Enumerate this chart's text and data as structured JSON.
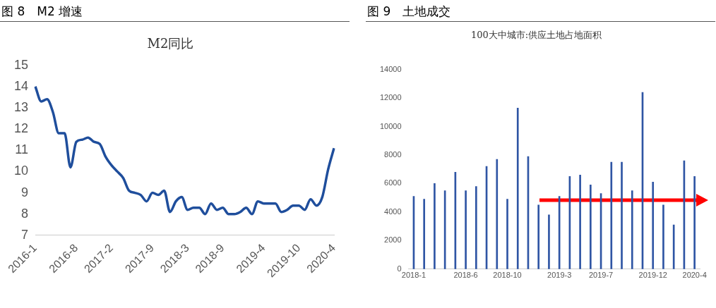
{
  "chart_data": [
    {
      "type": "line",
      "title": "图 8　M2 增速",
      "subtitle": "M2同比",
      "categories": [
        "2016-1",
        null,
        null,
        null,
        null,
        null,
        null,
        "2016-8",
        null,
        null,
        null,
        null,
        null,
        "2017-2",
        null,
        null,
        null,
        null,
        null,
        null,
        "2017-9",
        null,
        null,
        null,
        null,
        null,
        "2018-3",
        null,
        null,
        null,
        null,
        null,
        "2018-9",
        null,
        null,
        null,
        null,
        null,
        null,
        "2019-4",
        null,
        null,
        null,
        null,
        null,
        "2019-10",
        null,
        null,
        null,
        null,
        null,
        "2020-4"
      ],
      "values": [
        14.0,
        13.3,
        13.4,
        12.8,
        11.8,
        11.8,
        10.2,
        11.4,
        11.5,
        11.6,
        11.4,
        11.3,
        10.7,
        10.3,
        10.0,
        9.7,
        9.1,
        9.0,
        8.9,
        8.6,
        9.0,
        8.9,
        9.1,
        8.1,
        8.6,
        8.8,
        8.2,
        8.3,
        8.3,
        8.0,
        8.5,
        8.2,
        8.3,
        8.0,
        8.0,
        8.1,
        8.3,
        8.0,
        8.6,
        8.5,
        8.5,
        8.5,
        8.1,
        8.2,
        8.4,
        8.4,
        8.2,
        8.7,
        8.4,
        8.8,
        10.1,
        11.1
      ],
      "color": "#1f4e9c",
      "ylim": [
        7,
        15
      ],
      "yticks": [
        7,
        8,
        9,
        10,
        11,
        12,
        13,
        14,
        15
      ],
      "marker": "none",
      "line_style": "solid"
    },
    {
      "type": "bar",
      "title": "图 9　土地成交",
      "subtitle": "100大中城市:供应土地占地面积",
      "categories": [
        "2018-1",
        null,
        null,
        null,
        null,
        "2018-6",
        null,
        null,
        null,
        "2018-10",
        null,
        null,
        null,
        null,
        "2019-3",
        null,
        null,
        null,
        "2019-7",
        null,
        null,
        null,
        null,
        "2019-12",
        null,
        null,
        null,
        "2020-4"
      ],
      "values": [
        5100,
        4900,
        6000,
        5500,
        6800,
        5500,
        5800,
        7200,
        7700,
        4900,
        11300,
        7900,
        4500,
        3800,
        5100,
        6500,
        6600,
        5900,
        5300,
        7500,
        7500,
        5500,
        12400,
        6100,
        4500,
        3100,
        7600,
        6500
      ],
      "color": "#2f55a4",
      "ylim": [
        0,
        14000
      ],
      "yticks": [
        0,
        2000,
        4000,
        6000,
        8000,
        10000,
        12000,
        14000
      ]
    }
  ]
}
